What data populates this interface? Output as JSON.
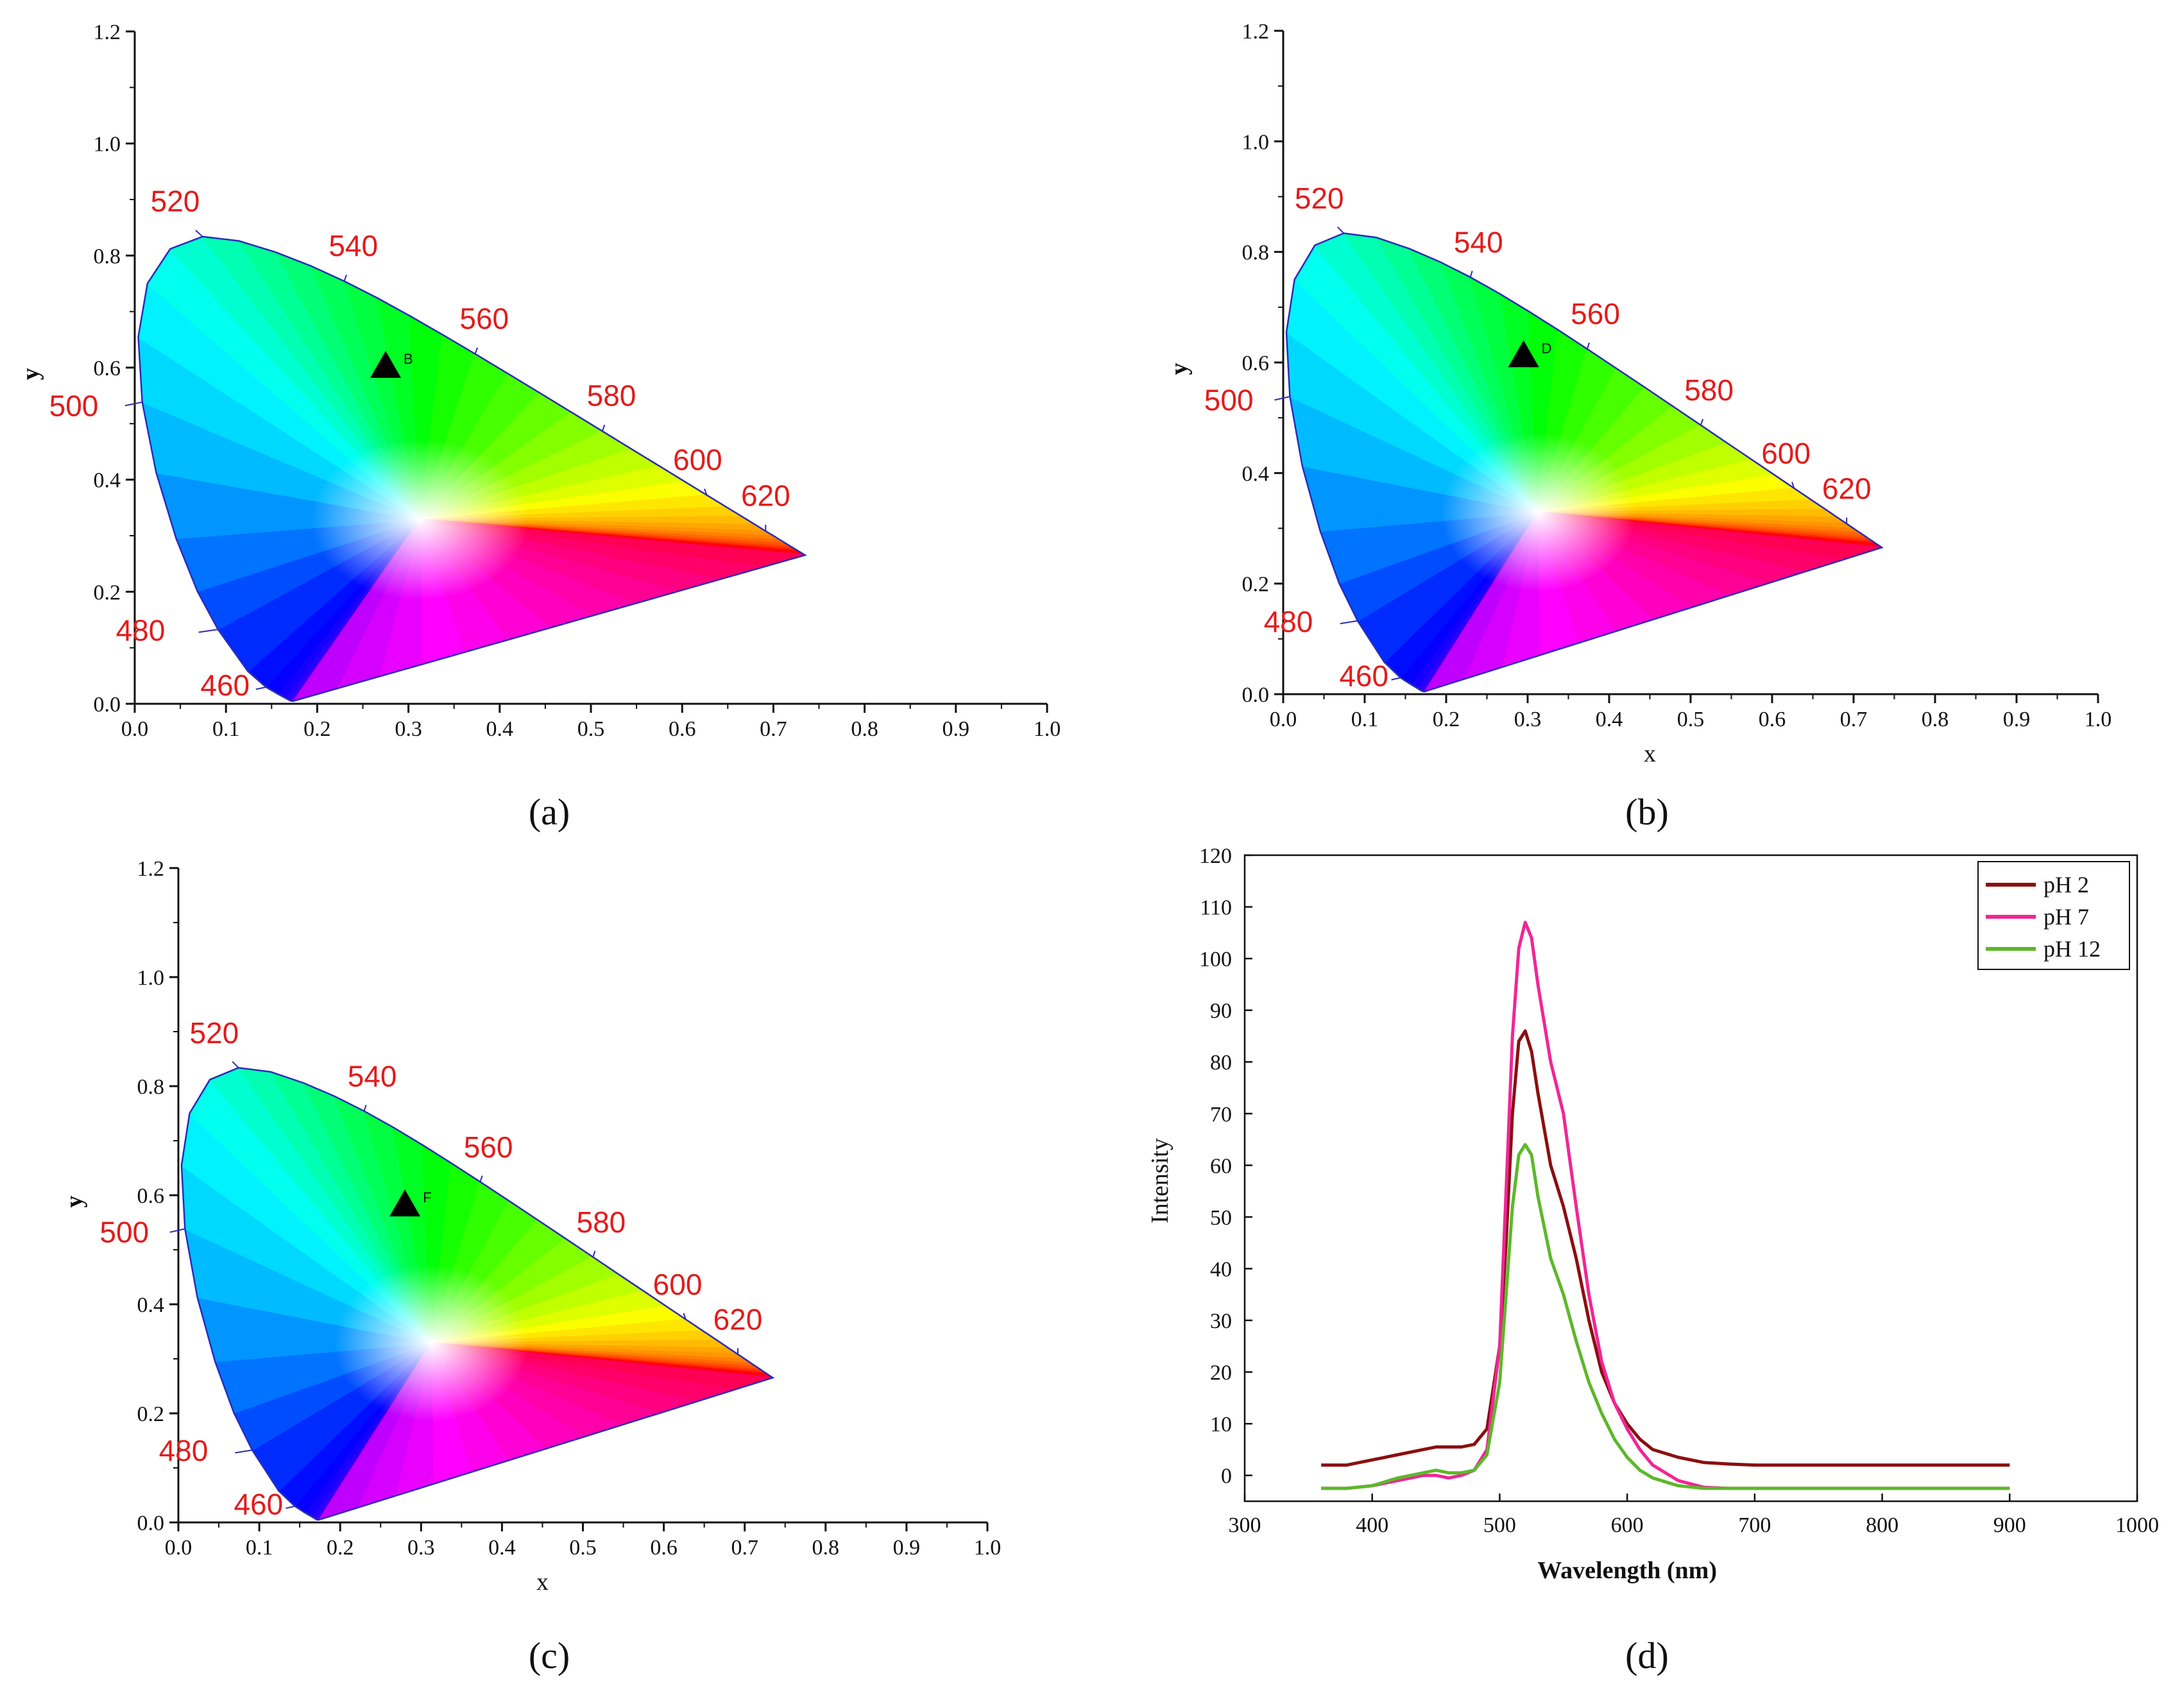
{
  "colors": {
    "locus_outline": "#2b2bb8",
    "wavelength_label": "#e31b1b",
    "marker": "#000000",
    "ph2": "#8b0f10",
    "ph7": "#f02696",
    "ph12": "#5cb82a"
  },
  "chart_data": [
    {
      "type": "scatter",
      "panel_label": "(a)",
      "title": "",
      "xlabel": "",
      "ylabel": "y",
      "xlim": [
        0.0,
        1.0
      ],
      "ylim": [
        0.0,
        1.2
      ],
      "xticks": [
        "0.0",
        "0.1",
        "0.2",
        "0.3",
        "0.4",
        "0.5",
        "0.6",
        "0.7",
        "0.8",
        "0.9",
        "1.0"
      ],
      "yticks": [
        "0.0",
        "0.2",
        "0.4",
        "0.6",
        "0.8",
        "1.0",
        "1.2"
      ],
      "wavelength_labels": [
        "460",
        "480",
        "500",
        "520",
        "540",
        "560",
        "580",
        "600",
        "620"
      ],
      "marker": {
        "label": "B",
        "x": 0.275,
        "y": 0.6
      }
    },
    {
      "type": "scatter",
      "panel_label": "(b)",
      "title": "",
      "xlabel": "x",
      "ylabel": "y",
      "xlim": [
        0.0,
        1.0
      ],
      "ylim": [
        0.0,
        1.2
      ],
      "xticks": [
        "0.0",
        "0.1",
        "0.2",
        "0.3",
        "0.4",
        "0.5",
        "0.6",
        "0.7",
        "0.8",
        "0.9",
        "1.0"
      ],
      "yticks": [
        "0.0",
        "0.2",
        "0.4",
        "0.6",
        "0.8",
        "1.0",
        "1.2"
      ],
      "wavelength_labels": [
        "460",
        "480",
        "500",
        "520",
        "540",
        "560",
        "580",
        "600",
        "620"
      ],
      "marker": {
        "label": "D",
        "x": 0.295,
        "y": 0.61
      }
    },
    {
      "type": "scatter",
      "panel_label": "(c)",
      "title": "",
      "xlabel": "x",
      "ylabel": "y",
      "xlim": [
        0.0,
        1.0
      ],
      "ylim": [
        0.0,
        1.2
      ],
      "xticks": [
        "0.0",
        "0.1",
        "0.2",
        "0.3",
        "0.4",
        "0.5",
        "0.6",
        "0.7",
        "0.8",
        "0.9",
        "1.0"
      ],
      "yticks": [
        "0.0",
        "0.2",
        "0.4",
        "0.6",
        "0.8",
        "1.0",
        "1.2"
      ],
      "wavelength_labels": [
        "460",
        "480",
        "500",
        "520",
        "540",
        "560",
        "580",
        "600",
        "620"
      ],
      "marker": {
        "label": "F",
        "x": 0.28,
        "y": 0.58
      }
    },
    {
      "type": "line",
      "panel_label": "(d)",
      "title": "",
      "xlabel": "Wavelength (nm)",
      "ylabel": "Intensity",
      "xlim": [
        300,
        1000
      ],
      "ylim": [
        -5,
        120
      ],
      "xticks": [
        "300",
        "400",
        "500",
        "600",
        "700",
        "800",
        "900",
        "1000"
      ],
      "yticks": [
        "0",
        "10",
        "20",
        "30",
        "40",
        "50",
        "60",
        "70",
        "80",
        "90",
        "100",
        "110",
        "120"
      ],
      "legend": [
        "pH 2",
        "pH 7",
        "pH 12"
      ],
      "legend_position": "top-right",
      "series": [
        {
          "name": "pH 2",
          "x": [
            360,
            380,
            400,
            420,
            440,
            450,
            460,
            470,
            480,
            490,
            500,
            505,
            510,
            515,
            520,
            525,
            530,
            540,
            550,
            560,
            570,
            580,
            590,
            600,
            610,
            620,
            640,
            660,
            680,
            700,
            750,
            800,
            850,
            900
          ],
          "y": [
            2,
            2,
            3,
            4,
            5,
            5.5,
            5.5,
            5.5,
            6,
            9,
            25,
            45,
            70,
            84,
            86,
            82,
            74,
            60,
            52,
            42,
            30,
            20,
            14,
            10,
            7,
            5,
            3.5,
            2.5,
            2.2,
            2,
            2,
            2,
            2,
            2
          ]
        },
        {
          "name": "pH 7",
          "x": [
            360,
            380,
            400,
            420,
            440,
            450,
            460,
            470,
            480,
            490,
            500,
            505,
            510,
            515,
            520,
            525,
            530,
            540,
            550,
            560,
            570,
            580,
            590,
            600,
            610,
            620,
            640,
            660,
            680,
            700,
            750,
            800,
            850,
            900
          ],
          "y": [
            -2.5,
            -2.5,
            -2,
            -1,
            0,
            0,
            -0.5,
            0,
            1,
            5,
            25,
            55,
            85,
            102,
            107,
            104,
            95,
            80,
            70,
            52,
            35,
            22,
            14,
            9,
            5,
            2,
            -1,
            -2.3,
            -2.5,
            -2.5,
            -2.5,
            -2.5,
            -2.5,
            -2.5
          ]
        },
        {
          "name": "pH 12",
          "x": [
            360,
            380,
            400,
            420,
            440,
            450,
            460,
            470,
            480,
            490,
            500,
            505,
            510,
            515,
            520,
            525,
            530,
            540,
            550,
            560,
            570,
            580,
            590,
            600,
            610,
            620,
            640,
            660,
            680,
            700,
            750,
            800,
            850,
            900
          ],
          "y": [
            -2.5,
            -2.5,
            -2,
            -0.5,
            0.5,
            1,
            0.5,
            0.5,
            1,
            4,
            18,
            35,
            52,
            62,
            64,
            62,
            54,
            42,
            35,
            26,
            18,
            12,
            7,
            3.5,
            1,
            -0.5,
            -2,
            -2.5,
            -2.5,
            -2.5,
            -2.5,
            -2.5,
            -2.5,
            -2.5
          ]
        }
      ]
    }
  ]
}
